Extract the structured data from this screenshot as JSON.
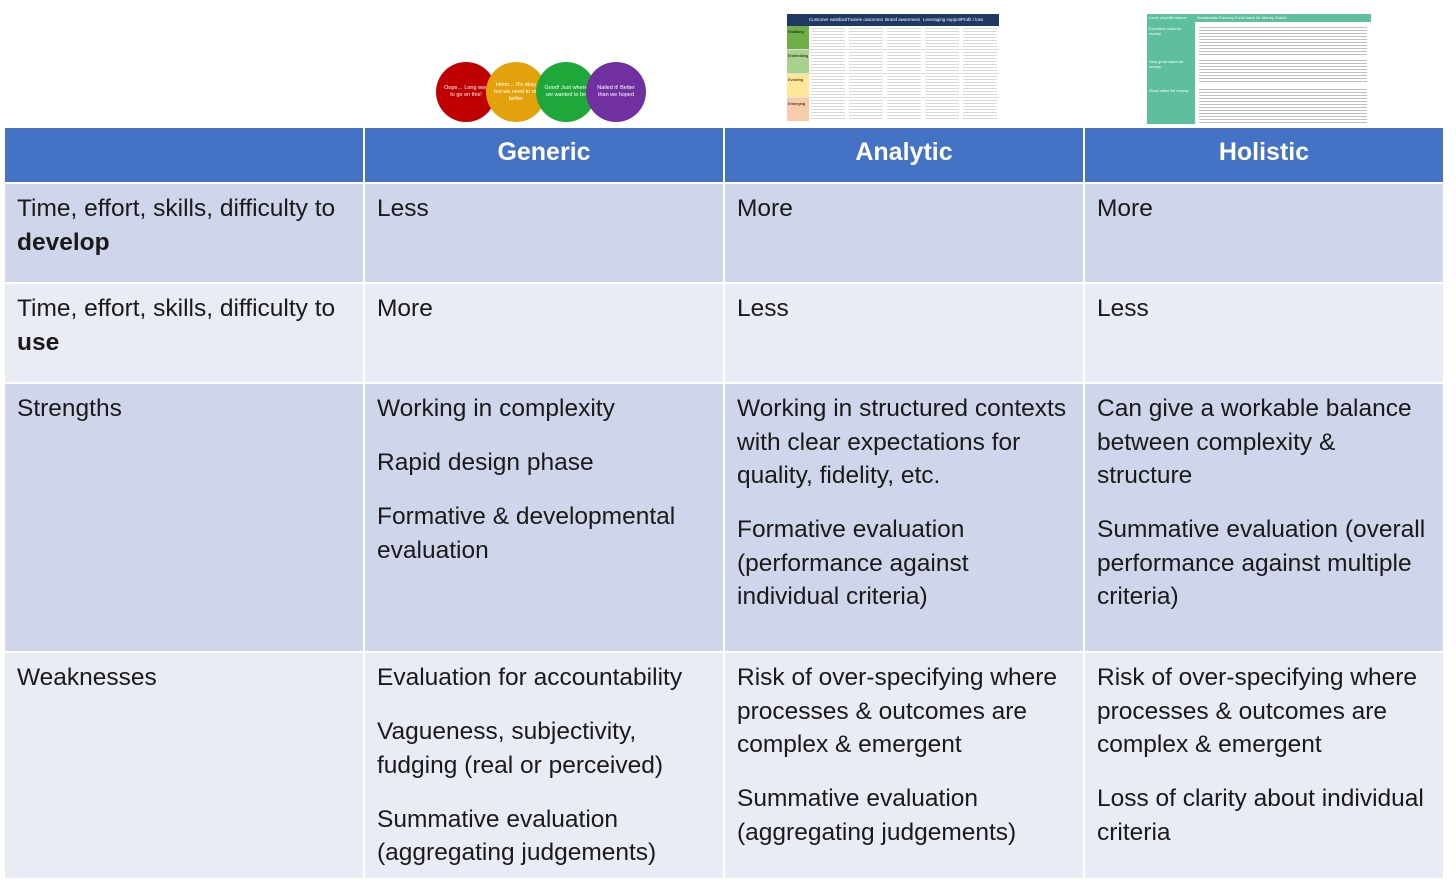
{
  "thumbnails": {
    "traffic_light": [
      {
        "text": "Oops… Long way to go on this!",
        "color": "#c00000"
      },
      {
        "text": "Hmm… It's okay but we need to do better",
        "color": "#e3a20b"
      },
      {
        "text": "Good! Just where we wanted to be",
        "color": "#1ea83a"
      },
      {
        "text": "Nailed it! Better than we hoped",
        "color": "#7030a0"
      }
    ],
    "rubric_headers": [
      "Customer satisfaction",
      "Trainee outcomes",
      "Brand awareness",
      "Leveraging support",
      "Profit / loss"
    ],
    "rubric_levels": [
      {
        "label": "Enabling",
        "color": "#70ad47"
      },
      {
        "label": "Embedding",
        "color": "#a9d18e"
      },
      {
        "label": "Evolving",
        "color": "#ffe699"
      },
      {
        "label": "Emerging",
        "color": "#f8cbad"
      }
    ],
    "holistic_header": [
      "Level of performance",
      "Sustainable Farming Fund Value for Money Rubric"
    ],
    "holistic_levels": [
      "Excellent value for money",
      "Very good value for money",
      "Good value for money"
    ]
  },
  "table": {
    "headers": [
      "",
      "Generic",
      "Analytic",
      "Holistic"
    ],
    "rows": [
      {
        "label": {
          "prefix": "Time, effort, skills, difficulty to ",
          "bold": "develop"
        },
        "cells": [
          [
            "Less"
          ],
          [
            "More"
          ],
          [
            "More"
          ]
        ]
      },
      {
        "label": {
          "prefix": "Time, effort, skills, difficulty to ",
          "bold": "use"
        },
        "cells": [
          [
            "More"
          ],
          [
            "Less"
          ],
          [
            "Less"
          ]
        ]
      },
      {
        "label": {
          "prefix": "Strengths",
          "bold": ""
        },
        "cells": [
          [
            "Working in complexity",
            "Rapid design phase",
            "Formative & developmental evaluation"
          ],
          [
            "Working in structured contexts with clear expectations for quality, fidelity, etc.",
            "Formative evaluation (performance against individual criteria)"
          ],
          [
            "Can give a workable balance between complexity & structure",
            "Summative evaluation (overall performance against multiple criteria)"
          ]
        ]
      },
      {
        "label": {
          "prefix": "Weaknesses",
          "bold": ""
        },
        "cells": [
          [
            "Evaluation for accountability",
            "Vagueness, subjectivity, fudging (real or perceived)",
            "Summative evaluation (aggregating judgements)"
          ],
          [
            "Risk of over-specifying where processes & outcomes are complex & emergent",
            "Summative evaluation (aggregating judgements)"
          ],
          [
            "Risk of over-specifying where processes & outcomes are complex & emergent",
            "Loss of clarity about individual criteria"
          ]
        ]
      }
    ]
  }
}
